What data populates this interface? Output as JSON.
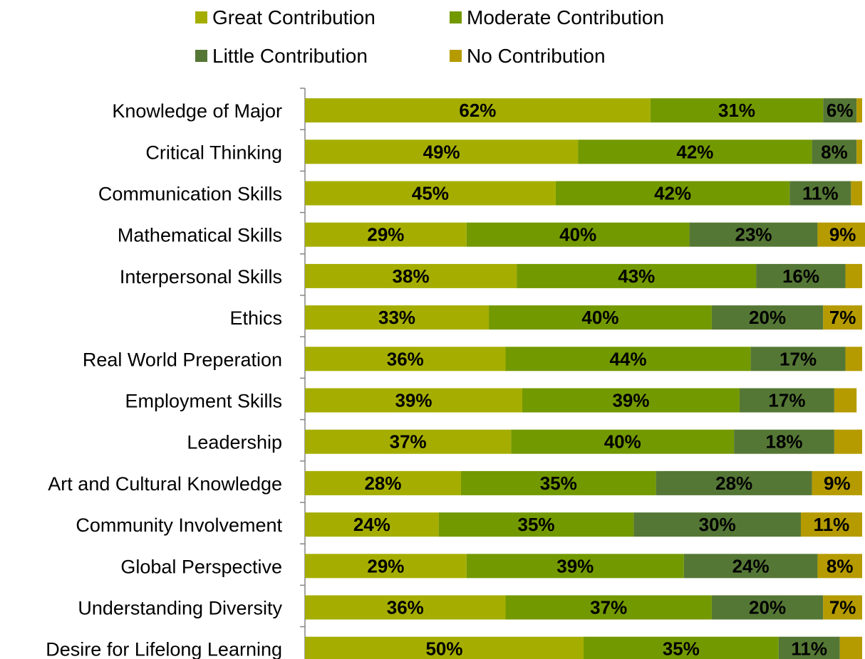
{
  "chart_data": {
    "type": "bar",
    "orientation": "horizontal",
    "stacked": true,
    "percent_stacked": true,
    "title": "",
    "xlabel": "",
    "ylabel": "",
    "xlim": [
      0,
      100
    ],
    "grid": false,
    "legend_position": "top",
    "categories": [
      "Knowledge of Major",
      "Critical Thinking",
      "Communication Skills",
      "Mathematical Skills",
      "Interpersonal Skills",
      "Ethics",
      "Real World Preperation",
      "Employment Skills",
      "Leadership",
      "Art and Cultural Knowledge",
      "Community Involvement",
      "Global Perspective",
      "Understanding Diversity",
      "Desire for Lifelong Learning"
    ],
    "series": [
      {
        "name": "Great Contribution",
        "color": "#a5ae00",
        "values": [
          62,
          49,
          45,
          29,
          38,
          33,
          36,
          39,
          37,
          28,
          24,
          29,
          36,
          50
        ],
        "labels": [
          "62%",
          "49%",
          "45%",
          "29%",
          "38%",
          "33%",
          "36%",
          "39%",
          "37%",
          "28%",
          "24%",
          "29%",
          "36%",
          "50%"
        ]
      },
      {
        "name": "Moderate Contribution",
        "color": "#739900",
        "values": [
          31,
          42,
          42,
          40,
          43,
          40,
          44,
          39,
          40,
          35,
          35,
          39,
          37,
          35
        ],
        "labels": [
          "31%",
          "42%",
          "42%",
          "40%",
          "43%",
          "40%",
          "44%",
          "39%",
          "40%",
          "35%",
          "35%",
          "39%",
          "37%",
          "35%"
        ]
      },
      {
        "name": "Little Contribution",
        "color": "#557735",
        "values": [
          6,
          8,
          11,
          23,
          16,
          20,
          17,
          17,
          18,
          28,
          30,
          24,
          20,
          11
        ],
        "labels": [
          "6%",
          "8%",
          "11%",
          "23%",
          "16%",
          "20%",
          "17%",
          "17%",
          "18%",
          "28%",
          "30%",
          "24%",
          "20%",
          "11%"
        ]
      },
      {
        "name": "No Contribution",
        "color": "#b59b00",
        "values": [
          1,
          1,
          2,
          9,
          3,
          7,
          3,
          4,
          5,
          9,
          11,
          8,
          7,
          4
        ],
        "labels": [
          "",
          "",
          "",
          "9%",
          "",
          "7%",
          "",
          "",
          "",
          "9%",
          "11%",
          "8%",
          "7%",
          ""
        ]
      }
    ]
  }
}
